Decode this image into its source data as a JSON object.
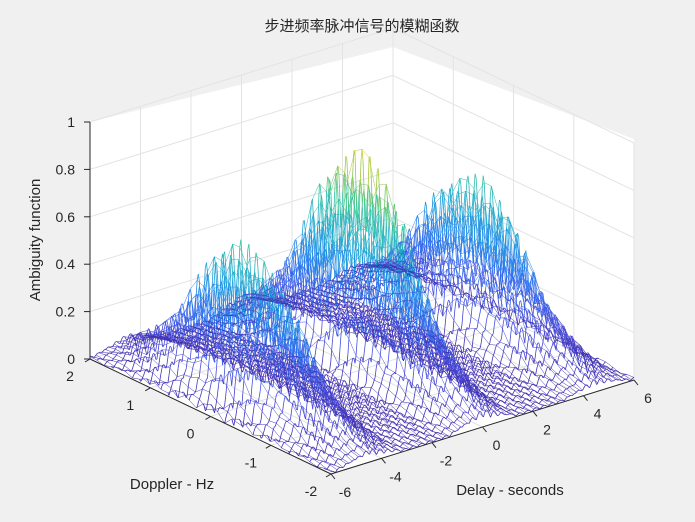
{
  "chart_data": {
    "type": "surface",
    "title": "步进频率脉冲信号的模糊函数",
    "xlabel": "Delay - seconds",
    "ylabel": "Doppler - Hz",
    "zlabel": "Ambiguity function",
    "xlim": [
      -6,
      6
    ],
    "ylim": [
      -2,
      2
    ],
    "zlim": [
      0,
      1
    ],
    "xticks": [
      -6,
      -4,
      -2,
      0,
      2,
      4,
      6
    ],
    "yticks": [
      -2,
      -1,
      0,
      1,
      2
    ],
    "zticks": [
      0,
      0.2,
      0.4,
      0.6,
      0.8,
      1
    ],
    "xtick_labels": [
      "-6",
      "-4",
      "-2",
      "0",
      "2",
      "4",
      "6"
    ],
    "ytick_labels": [
      "-2",
      "-1",
      "0",
      "1",
      "2"
    ],
    "ztick_labels": [
      "0",
      "0.2",
      "0.4",
      "0.6",
      "0.8",
      "1"
    ],
    "peaks": [
      {
        "delay": -4.5,
        "doppler": 0,
        "value": 0.67
      },
      {
        "delay": 0,
        "doppler": 0,
        "value": 0.93
      },
      {
        "delay": 4.5,
        "doppler": 0,
        "value": 0.67
      }
    ],
    "grid": true,
    "colormap": [
      "#3e26a8",
      "#4850e0",
      "#2a79f0",
      "#1ca6d8",
      "#35c4a0",
      "#a8c83a",
      "#f1d02b"
    ]
  }
}
